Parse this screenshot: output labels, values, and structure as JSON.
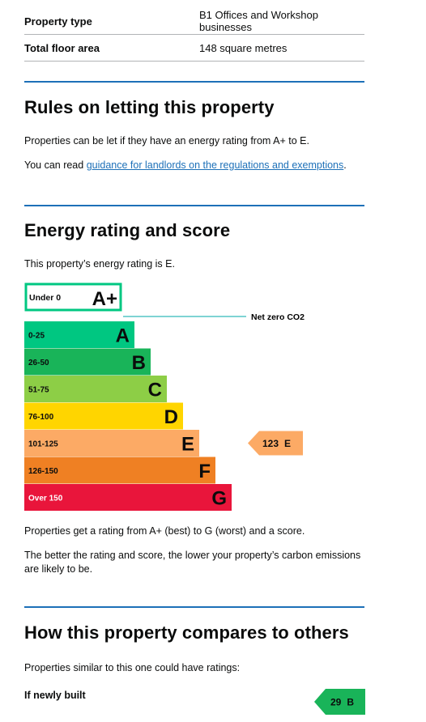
{
  "summary": {
    "rows": [
      {
        "label": "Property type",
        "value": "B1 Offices and Workshop businesses"
      },
      {
        "label": "Total floor area",
        "value": "148 square metres"
      }
    ]
  },
  "letting": {
    "heading": "Rules on letting this property",
    "para1": "Properties can be let if they have an energy rating from A+ to E.",
    "para2_prefix": "You can read ",
    "para2_link": "guidance for landlords on the regulations and exemptions",
    "para2_suffix": "."
  },
  "energy": {
    "heading": "Energy rating and score",
    "intro": "This property’s energy rating is E.",
    "outro1": "Properties get a rating from A+ (best) to G (worst) and a score.",
    "outro2": "The better the rating and score, the lower your property’s carbon emissions are likely to be."
  },
  "chart_data": {
    "type": "bar",
    "categories": [
      "A+",
      "A",
      "B",
      "C",
      "D",
      "E",
      "F",
      "G"
    ],
    "ranges": [
      "Under 0",
      "0-25",
      "26-50",
      "51-75",
      "76-100",
      "101-125",
      "126-150",
      "Over 150"
    ],
    "colors": [
      "#00c781",
      "#00c781",
      "#19b459",
      "#8dce46",
      "#ffd500",
      "#fcaa65",
      "#ef8023",
      "#e9153b"
    ],
    "net_zero_label": "Net zero CO2",
    "current": {
      "score": "123",
      "band": "E",
      "color": "#fcaa65"
    }
  },
  "compare": {
    "heading": "How this property compares to others",
    "intro": "Properties similar to this one could have ratings:",
    "newly_built_label": "If newly built",
    "newly_built_score": "29",
    "newly_built_band": "B",
    "newly_built_color": "#19b459"
  }
}
